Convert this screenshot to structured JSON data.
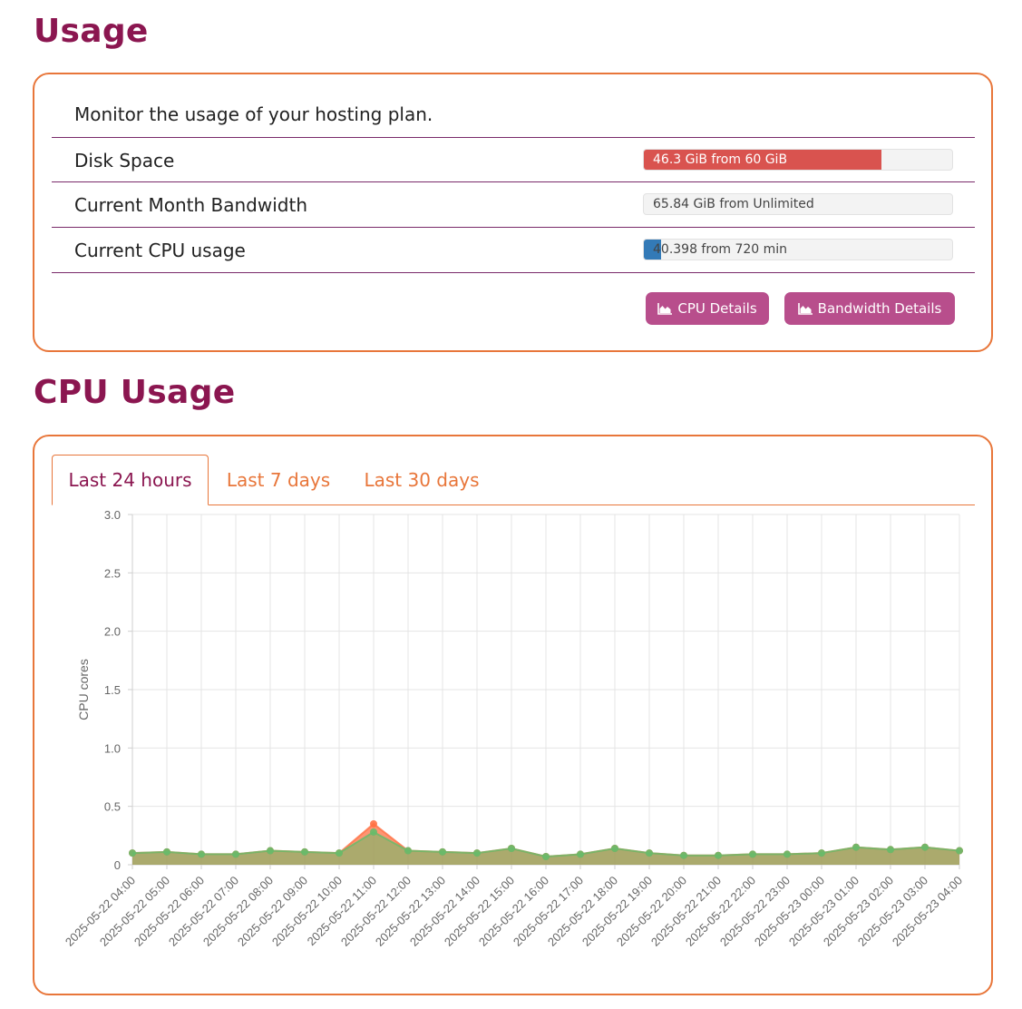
{
  "usage": {
    "title": "Usage",
    "description": "Monitor the usage of your hosting plan.",
    "rows": [
      {
        "label": "Disk Space",
        "bar_text": "46.3 GiB from 60 GiB",
        "fill_fraction": 0.772,
        "fill_color": "#d9534f"
      },
      {
        "label": "Current Month Bandwidth",
        "bar_text": "65.84 GiB from Unlimited",
        "fill_fraction": 0,
        "fill_color": "#5cb85c"
      },
      {
        "label": "Current CPU usage",
        "bar_text": "40.398 from 720 min",
        "fill_fraction": 0.056,
        "fill_color": "#337ab7"
      }
    ],
    "buttons": {
      "cpu_details": "CPU Details",
      "bandwidth_details": "Bandwidth Details"
    },
    "button_icon": "area-chart-icon"
  },
  "cpu": {
    "title": "CPU Usage",
    "tabs": [
      "Last 24 hours",
      "Last 7 days",
      "Last 30 days"
    ],
    "active_tab": 0
  },
  "colors": {
    "accent": "#e8763a",
    "heading": "#8b1650",
    "button": "#b84e8c"
  },
  "chart_data": {
    "type": "area",
    "ylabel": "CPU cores",
    "ylim": [
      0,
      3.0
    ],
    "yticks": [
      "0",
      "0.5",
      "1.0",
      "1.5",
      "2.0",
      "2.5",
      "3.0"
    ],
    "grid": true,
    "x": [
      "2025-05-22 04:00",
      "2025-05-22 05:00",
      "2025-05-22 06:00",
      "2025-05-22 07:00",
      "2025-05-22 08:00",
      "2025-05-22 09:00",
      "2025-05-22 10:00",
      "2025-05-22 11:00",
      "2025-05-22 12:00",
      "2025-05-22 13:00",
      "2025-05-22 14:00",
      "2025-05-22 15:00",
      "2025-05-22 16:00",
      "2025-05-22 17:00",
      "2025-05-22 18:00",
      "2025-05-22 19:00",
      "2025-05-22 20:00",
      "2025-05-22 21:00",
      "2025-05-22 22:00",
      "2025-05-22 23:00",
      "2025-05-23 00:00",
      "2025-05-23 01:00",
      "2025-05-23 02:00",
      "2025-05-23 03:00",
      "2025-05-23 04:00"
    ],
    "series": [
      {
        "values": [
          0.1,
          0.11,
          0.09,
          0.09,
          0.12,
          0.11,
          0.1,
          0.35,
          0.12,
          0.11,
          0.1,
          0.14,
          0.07,
          0.09,
          0.14,
          0.1,
          0.08,
          0.08,
          0.09,
          0.09,
          0.1,
          0.15,
          0.13,
          0.15,
          0.12
        ],
        "color": "#ff7043"
      },
      {
        "values": [
          0.1,
          0.11,
          0.09,
          0.09,
          0.12,
          0.11,
          0.1,
          0.28,
          0.12,
          0.11,
          0.1,
          0.14,
          0.07,
          0.09,
          0.14,
          0.1,
          0.08,
          0.08,
          0.09,
          0.09,
          0.1,
          0.15,
          0.13,
          0.15,
          0.12
        ],
        "color": "#66bb6a"
      }
    ]
  }
}
